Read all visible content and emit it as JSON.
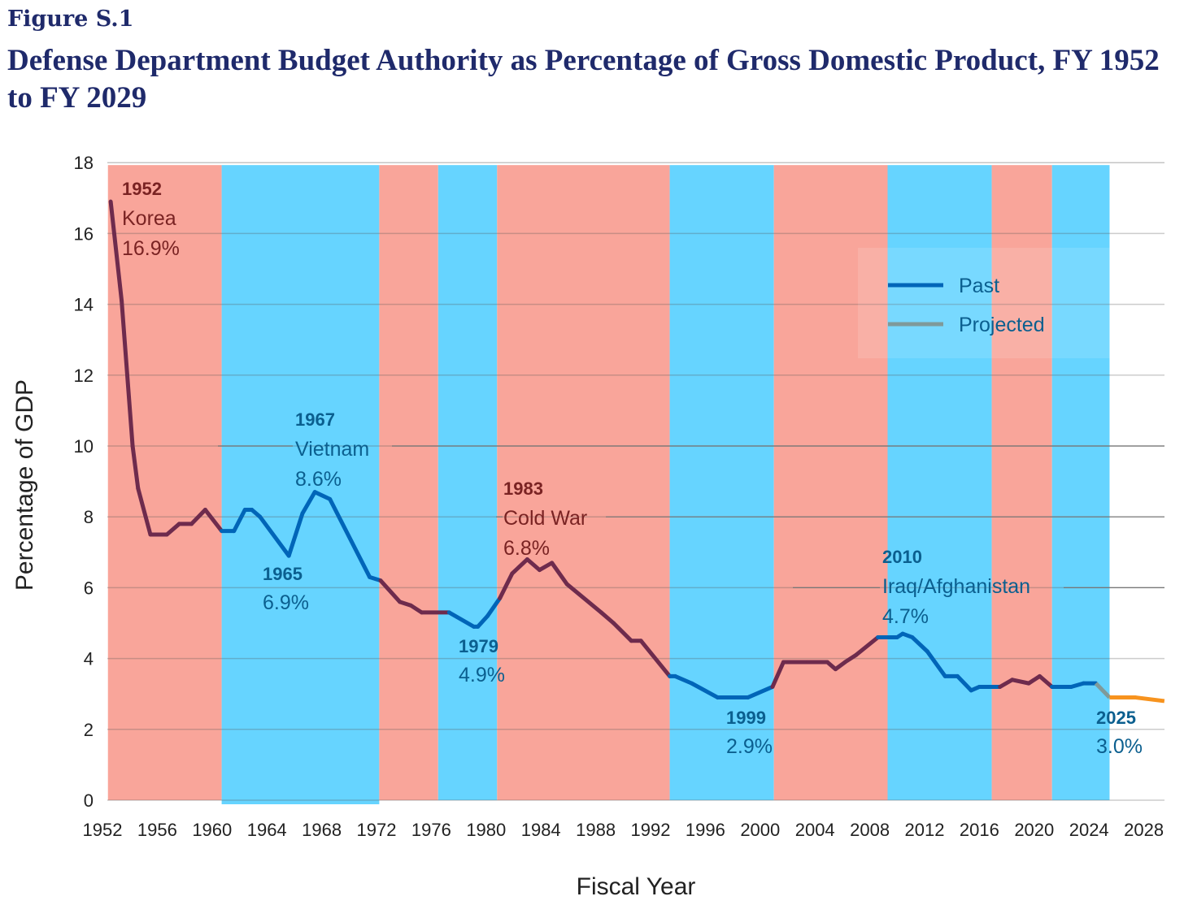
{
  "figure_label": "Figure S.1",
  "chart_data": {
    "type": "line",
    "title": "Defense Department Budget Authority as Percentage of Gross Domestic Product, FY 1952 to FY 2029",
    "xlabel": "Fiscal Year",
    "ylabel": "Percentage of GDP",
    "xlim": [
      1952,
      2029.5
    ],
    "ylim": [
      0,
      18
    ],
    "x_ticks": [
      "1952",
      "1956",
      "1960",
      "1964",
      "1968",
      "1972",
      "1976",
      "1980",
      "1984",
      "1988",
      "1992",
      "1996",
      "2000",
      "2004",
      "2008",
      "2012",
      "2016",
      "2020",
      "2024",
      "2028"
    ],
    "y_ticks": [
      "0",
      "2",
      "4",
      "6",
      "8",
      "10",
      "12",
      "14",
      "16",
      "18"
    ],
    "grid": true,
    "legend": {
      "placement": "top-right",
      "entries": [
        {
          "label": "Past",
          "color": "#0065b8"
        },
        {
          "label": "Projected",
          "color": "#7f9a9a"
        }
      ]
    },
    "colors": {
      "red_band": "#f9a59a",
      "blue_band": "#66d4ff",
      "past_red": "#6e2b4d",
      "past_blue": "#0065b8",
      "projected": "#7f9a9a",
      "projected_future": "#f7931e"
    },
    "bands": [
      {
        "start": 1952.4,
        "end": 1960.7,
        "party": "red"
      },
      {
        "start": 1960.7,
        "end": 1972.2,
        "party": "blue"
      },
      {
        "start": 1972.2,
        "end": 1976.5,
        "party": "red"
      },
      {
        "start": 1976.5,
        "end": 1980.8,
        "party": "blue"
      },
      {
        "start": 1980.8,
        "end": 1993.4,
        "party": "red"
      },
      {
        "start": 1993.4,
        "end": 2001.0,
        "party": "blue"
      },
      {
        "start": 2001.0,
        "end": 2009.3,
        "party": "red"
      },
      {
        "start": 2009.3,
        "end": 2016.9,
        "party": "blue"
      },
      {
        "start": 2016.9,
        "end": 2021.3,
        "party": "red"
      },
      {
        "start": 2021.3,
        "end": 2025.5,
        "party": "blue"
      }
    ],
    "series": [
      {
        "name": "Past",
        "points": [
          [
            1952.6,
            16.9
          ],
          [
            1953.4,
            14.1
          ],
          [
            1954.2,
            10.0
          ],
          [
            1954.6,
            8.8
          ],
          [
            1955.5,
            7.5
          ],
          [
            1956.7,
            7.5
          ],
          [
            1957.6,
            7.8
          ],
          [
            1958.5,
            7.8
          ],
          [
            1959.5,
            8.2
          ],
          [
            1960.7,
            7.6
          ],
          [
            1961.6,
            7.6
          ],
          [
            1962.4,
            8.2
          ],
          [
            1962.9,
            8.2
          ],
          [
            1963.5,
            8.0
          ],
          [
            1965.6,
            6.9
          ],
          [
            1966.6,
            8.1
          ],
          [
            1967.5,
            8.7
          ],
          [
            1968.6,
            8.5
          ],
          [
            1971.5,
            6.3
          ],
          [
            1972.3,
            6.2
          ],
          [
            1973.7,
            5.6
          ],
          [
            1974.5,
            5.5
          ],
          [
            1975.3,
            5.3
          ],
          [
            1977.3,
            5.3
          ],
          [
            1979.1,
            4.9
          ],
          [
            1979.4,
            4.9
          ],
          [
            1980.1,
            5.2
          ],
          [
            1981.0,
            5.7
          ],
          [
            1981.9,
            6.4
          ],
          [
            1983.0,
            6.8
          ],
          [
            1983.9,
            6.5
          ],
          [
            1984.8,
            6.7
          ],
          [
            1985.9,
            6.1
          ],
          [
            1988.4,
            5.3
          ],
          [
            1989.3,
            5.0
          ],
          [
            1990.6,
            4.5
          ],
          [
            1991.3,
            4.5
          ],
          [
            1993.4,
            3.5
          ],
          [
            1993.8,
            3.5
          ],
          [
            1995.0,
            3.3
          ],
          [
            1996.9,
            2.9
          ],
          [
            1999.1,
            2.9
          ],
          [
            2000.9,
            3.2
          ],
          [
            2001.7,
            3.9
          ],
          [
            2003.5,
            3.9
          ],
          [
            2004.9,
            3.9
          ],
          [
            2005.5,
            3.7
          ],
          [
            2006.2,
            3.9
          ],
          [
            2007.0,
            4.1
          ],
          [
            2008.6,
            4.6
          ],
          [
            2010.0,
            4.6
          ],
          [
            2010.4,
            4.7
          ],
          [
            2011.1,
            4.6
          ],
          [
            2012.2,
            4.2
          ],
          [
            2013.5,
            3.5
          ],
          [
            2014.4,
            3.5
          ],
          [
            2015.4,
            3.1
          ],
          [
            2016.0,
            3.2
          ],
          [
            2017.5,
            3.2
          ],
          [
            2018.4,
            3.4
          ],
          [
            2019.6,
            3.3
          ],
          [
            2020.4,
            3.5
          ],
          [
            2021.3,
            3.2
          ],
          [
            2022.7,
            3.2
          ],
          [
            2023.6,
            3.3
          ],
          [
            2024.5,
            3.3
          ]
        ]
      },
      {
        "name": "Projected",
        "points": [
          [
            2024.5,
            3.3
          ],
          [
            2025.5,
            2.9
          ]
        ]
      },
      {
        "name": "Projected future",
        "points": [
          [
            2025.5,
            2.9
          ],
          [
            2026.9,
            2.9
          ],
          [
            2027.4,
            2.9
          ],
          [
            2029.5,
            2.8
          ]
        ]
      }
    ],
    "annotations": [
      {
        "year": "1952",
        "label": "Korea",
        "value": "16.9%",
        "party": "red"
      },
      {
        "year": "1967",
        "label": "Vietnam",
        "value": "8.6%",
        "party": "blue"
      },
      {
        "year": "1965",
        "label": "",
        "value": "6.9%",
        "party": "blue"
      },
      {
        "year": "1983",
        "label": "Cold War",
        "value": "6.8%",
        "party": "red"
      },
      {
        "year": "1979",
        "label": "",
        "value": "4.9%",
        "party": "blue"
      },
      {
        "year": "1999",
        "label": "",
        "value": "2.9%",
        "party": "blue"
      },
      {
        "year": "2010",
        "label": "Iraq/Afghanistan",
        "value": "4.7%",
        "party": "blue"
      },
      {
        "year": "2025",
        "label": "",
        "value": "3.0%",
        "party": "blue"
      }
    ]
  }
}
